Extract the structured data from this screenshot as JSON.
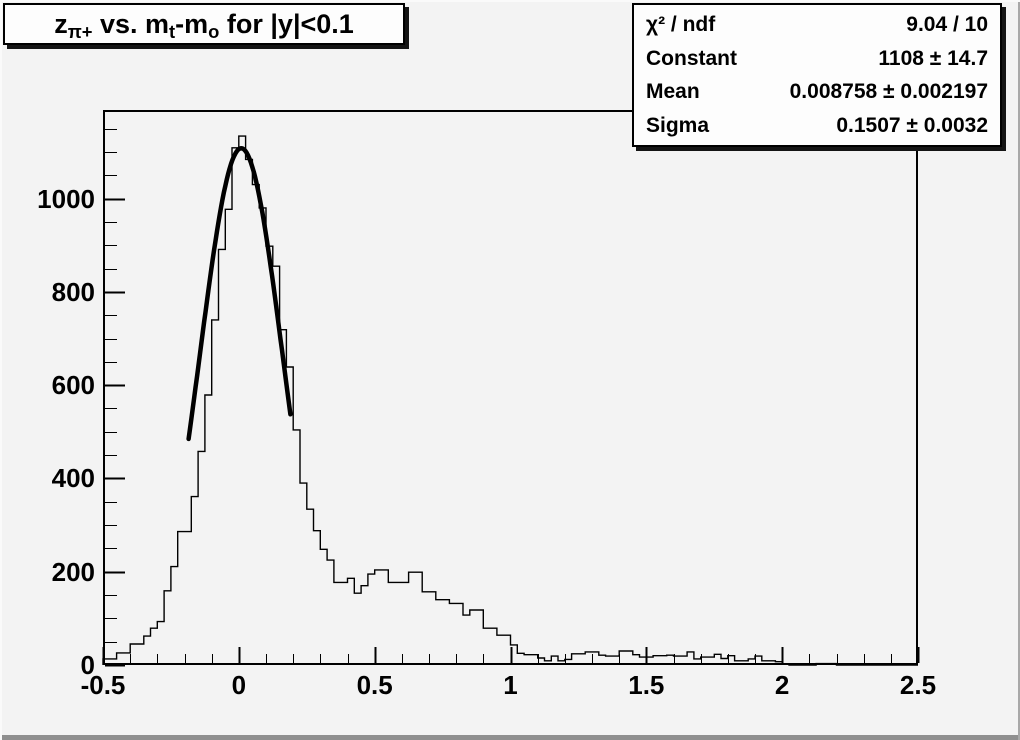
{
  "title": {
    "text": "z_{π+} vs. m_{t}-m_{o} for |y|<0.1",
    "segments": [
      {
        "text": "z",
        "sub": false
      },
      {
        "text": "π+",
        "sub": true
      },
      {
        "text": " vs. m",
        "sub": false
      },
      {
        "text": "t",
        "sub": true
      },
      {
        "text": "-m",
        "sub": false
      },
      {
        "text": "o",
        "sub": true
      },
      {
        "text": " for |y|<0.1",
        "sub": false
      }
    ]
  },
  "stats": {
    "rows": [
      {
        "label": "χ² / ndf",
        "value": "9.04 / 10"
      },
      {
        "label": "Constant",
        "value": "1108 ± 14.7"
      },
      {
        "label": "Mean",
        "value": "0.008758 ± 0.002197"
      },
      {
        "label": "Sigma",
        "value": "0.1507 ± 0.0032"
      }
    ]
  },
  "chart_data": {
    "type": "bar",
    "subtype": "root-histogram-with-gaussian-fit",
    "title": "z_{π+} vs. m_{t}-m_{o} for |y|<0.1",
    "xlabel": "",
    "ylabel": "",
    "grid": false,
    "legend_position": "stats-box-top-right",
    "x_axis": {
      "range": [
        -0.5,
        2.5
      ],
      "major_tick_values": [
        -0.5,
        0,
        0.5,
        1,
        1.5,
        2,
        2.5
      ],
      "major_tick_labels": [
        "-0.5",
        "0",
        "0.5",
        "1",
        "1.5",
        "2",
        "2.5"
      ],
      "minor_step": 0.1
    },
    "y_axis": {
      "range": [
        0,
        1190
      ],
      "major_tick_values": [
        0,
        200,
        400,
        600,
        800,
        1000
      ],
      "major_tick_labels": [
        "0",
        "200",
        "400",
        "600",
        "800",
        "1000"
      ],
      "minor_step": 50
    },
    "bins": {
      "start": -0.5,
      "width": 0.025,
      "counts": [
        13,
        13,
        26,
        26,
        45,
        45,
        62,
        79,
        93,
        159,
        211,
        286,
        286,
        361,
        458,
        579,
        740,
        891,
        977,
        1109,
        1134,
        1084,
        1030,
        980,
        898,
        855,
        719,
        639,
        504,
        390,
        334,
        288,
        248,
        225,
        177,
        177,
        186,
        154,
        170,
        195,
        204,
        204,
        177,
        177,
        177,
        199,
        199,
        157,
        157,
        140,
        140,
        132,
        132,
        107,
        118,
        118,
        79,
        79,
        64,
        64,
        43,
        25,
        22,
        22,
        15,
        9,
        19,
        9,
        12,
        24,
        24,
        28,
        28,
        21,
        19,
        19,
        30,
        30,
        22,
        17,
        17,
        20,
        20,
        21,
        19,
        19,
        28,
        13,
        17,
        17,
        23,
        14,
        20,
        9,
        9,
        13,
        19,
        9,
        9,
        7,
        2,
        0,
        0,
        0,
        0,
        3,
        3,
        3,
        0,
        0,
        0,
        0,
        0,
        0,
        0,
        0,
        0,
        0,
        0,
        0
      ]
    },
    "fit": {
      "shape": "gaussian",
      "chi2": 9.04,
      "ndf": 10,
      "constant": 1108,
      "constant_err": 14.7,
      "mean": 0.008758,
      "mean_err": 0.002197,
      "sigma": 0.1507,
      "sigma_err": 0.0032,
      "draw_range": [
        -0.185,
        0.19
      ]
    }
  },
  "colors": {
    "background": "#f3f3f3",
    "box_background": "#fdfdfd",
    "line": "#000000",
    "pave_shadow": "#141414",
    "canvas_edge": "#8f8f8f"
  }
}
